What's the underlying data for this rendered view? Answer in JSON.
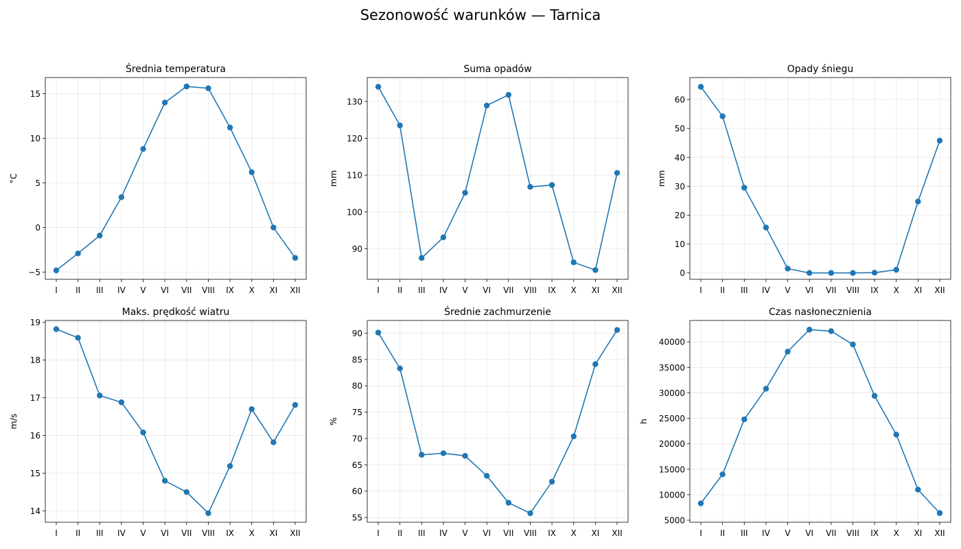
{
  "title": "Sezonowość warunków — Tarnica",
  "series_color": "#1f77b4",
  "chart_data": [
    {
      "type": "line",
      "title": "Średnia temperatura",
      "ylabel": "°C",
      "categories": [
        "I",
        "II",
        "III",
        "IV",
        "V",
        "VI",
        "VII",
        "VIII",
        "IX",
        "X",
        "XI",
        "XII"
      ],
      "values": [
        -4.8,
        -2.9,
        -0.9,
        3.4,
        8.8,
        14.0,
        15.8,
        15.6,
        11.2,
        6.2,
        0.0,
        -3.4
      ],
      "ylim": [
        -5.8,
        16.8
      ],
      "yticks": [
        -5,
        0,
        5,
        10,
        15
      ],
      "grid": true
    },
    {
      "type": "line",
      "title": "Suma opadów",
      "ylabel": "mm",
      "categories": [
        "I",
        "II",
        "III",
        "IV",
        "V",
        "VI",
        "VII",
        "VIII",
        "IX",
        "X",
        "XI",
        "XII"
      ],
      "values": [
        134.0,
        123.5,
        87.5,
        93.1,
        105.2,
        128.9,
        131.8,
        106.8,
        107.3,
        86.3,
        84.2,
        110.6
      ],
      "ylim": [
        81.7,
        136.5
      ],
      "yticks": [
        90,
        100,
        110,
        120,
        130
      ],
      "grid": true
    },
    {
      "type": "line",
      "title": "Opady śniegu",
      "ylabel": "mm",
      "categories": [
        "I",
        "II",
        "III",
        "IV",
        "V",
        "VI",
        "VII",
        "VIII",
        "IX",
        "X",
        "XI",
        "XII"
      ],
      "values": [
        64.4,
        54.2,
        29.5,
        15.7,
        1.5,
        0.0,
        0.0,
        0.0,
        0.1,
        1.1,
        24.7,
        45.8
      ],
      "ylim": [
        -2.2,
        67.6
      ],
      "yticks": [
        0,
        10,
        20,
        30,
        40,
        50,
        60
      ],
      "grid": true
    },
    {
      "type": "line",
      "title": "Maks. prędkość wiatru",
      "ylabel": "m/s",
      "categories": [
        "I",
        "II",
        "III",
        "IV",
        "V",
        "VI",
        "VII",
        "VIII",
        "IX",
        "X",
        "XI",
        "XII"
      ],
      "values": [
        18.82,
        18.59,
        17.06,
        16.88,
        16.08,
        14.8,
        14.5,
        13.94,
        15.19,
        16.7,
        15.82,
        16.81
      ],
      "ylim": [
        13.7,
        19.05
      ],
      "yticks": [
        14,
        15,
        16,
        17,
        18,
        19
      ],
      "grid": true
    },
    {
      "type": "line",
      "title": "Średnie zachmurzenie",
      "ylabel": "%",
      "categories": [
        "I",
        "II",
        "III",
        "IV",
        "V",
        "VI",
        "VII",
        "VIII",
        "IX",
        "X",
        "XI",
        "XII"
      ],
      "values": [
        90.1,
        83.3,
        66.9,
        67.2,
        66.7,
        62.9,
        57.8,
        55.8,
        61.8,
        70.4,
        84.1,
        90.6
      ],
      "ylim": [
        54.1,
        92.4
      ],
      "yticks": [
        55,
        60,
        65,
        70,
        75,
        80,
        85,
        90
      ],
      "grid": true
    },
    {
      "type": "line",
      "title": "Czas nasłonecznienia",
      "ylabel": "h",
      "categories": [
        "I",
        "II",
        "III",
        "IV",
        "V",
        "VI",
        "VII",
        "VIII",
        "IX",
        "X",
        "XI",
        "XII"
      ],
      "values": [
        8300,
        14000,
        24800,
        30800,
        38100,
        42400,
        42100,
        39500,
        29400,
        21800,
        11000,
        6400
      ],
      "ylim": [
        4600,
        44200
      ],
      "yticks": [
        5000,
        10000,
        15000,
        20000,
        25000,
        30000,
        35000,
        40000
      ],
      "grid": true
    }
  ]
}
